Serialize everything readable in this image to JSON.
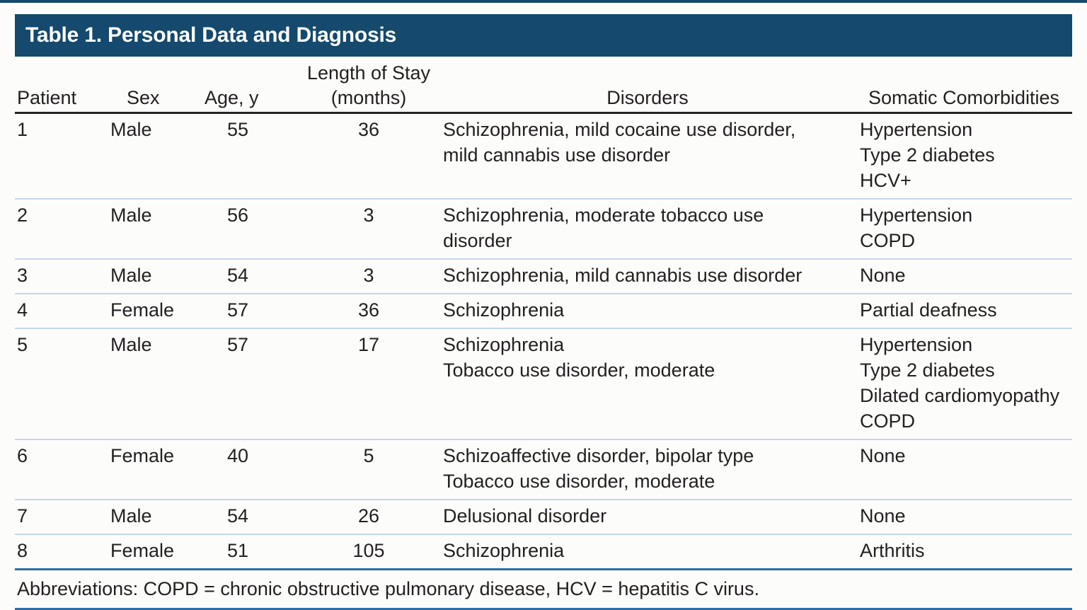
{
  "page": {
    "accent_navy": "#15496d",
    "accent_blue_rule": "#2d6ca6",
    "row_divider_color": "#c6d6e9",
    "text_color": "#231f20"
  },
  "table": {
    "title": "Table 1. Personal Data and Diagnosis",
    "headers": {
      "patient": "Patient",
      "sex": "Sex",
      "age": "Age, y",
      "length_of_stay": [
        "Length of Stay",
        "(months)"
      ],
      "disorders": "Disorders",
      "comorbidities": "Somatic Comorbidities"
    },
    "rows": [
      {
        "patient": "1",
        "sex": "Male",
        "age": "55",
        "length_of_stay": "36",
        "disorders": [
          "Schizophrenia, mild cocaine use disorder,",
          "mild cannabis use disorder"
        ],
        "comorbidities": [
          "Hypertension",
          "Type 2 diabetes",
          "HCV+"
        ]
      },
      {
        "patient": "2",
        "sex": "Male",
        "age": "56",
        "length_of_stay": "3",
        "disorders": [
          "Schizophrenia, moderate tobacco use",
          "disorder"
        ],
        "comorbidities": [
          "Hypertension",
          "COPD"
        ]
      },
      {
        "patient": "3",
        "sex": "Male",
        "age": "54",
        "length_of_stay": "3",
        "disorders": [
          "Schizophrenia, mild cannabis use disorder"
        ],
        "comorbidities": [
          "None"
        ]
      },
      {
        "patient": "4",
        "sex": "Female",
        "age": "57",
        "length_of_stay": "36",
        "disorders": [
          "Schizophrenia"
        ],
        "comorbidities": [
          "Partial deafness"
        ]
      },
      {
        "patient": "5",
        "sex": "Male",
        "age": "57",
        "length_of_stay": "17",
        "disorders": [
          "Schizophrenia",
          "Tobacco use disorder, moderate"
        ],
        "comorbidities": [
          "Hypertension",
          "Type 2 diabetes",
          "Dilated cardiomyopathy",
          "COPD"
        ]
      },
      {
        "patient": "6",
        "sex": "Female",
        "age": "40",
        "length_of_stay": "5",
        "disorders": [
          "Schizoaffective disorder, bipolar type",
          "Tobacco use disorder, moderate"
        ],
        "comorbidities": [
          "None"
        ]
      },
      {
        "patient": "7",
        "sex": "Male",
        "age": "54",
        "length_of_stay": "26",
        "disorders": [
          "Delusional disorder"
        ],
        "comorbidities": [
          "None"
        ]
      },
      {
        "patient": "8",
        "sex": "Female",
        "age": "51",
        "length_of_stay": "105",
        "disorders": [
          "Schizophrenia"
        ],
        "comorbidities": [
          "Arthritis"
        ]
      }
    ],
    "footnote": "Abbreviations: COPD = chronic obstructive pulmonary disease, HCV = hepatitis C virus."
  }
}
